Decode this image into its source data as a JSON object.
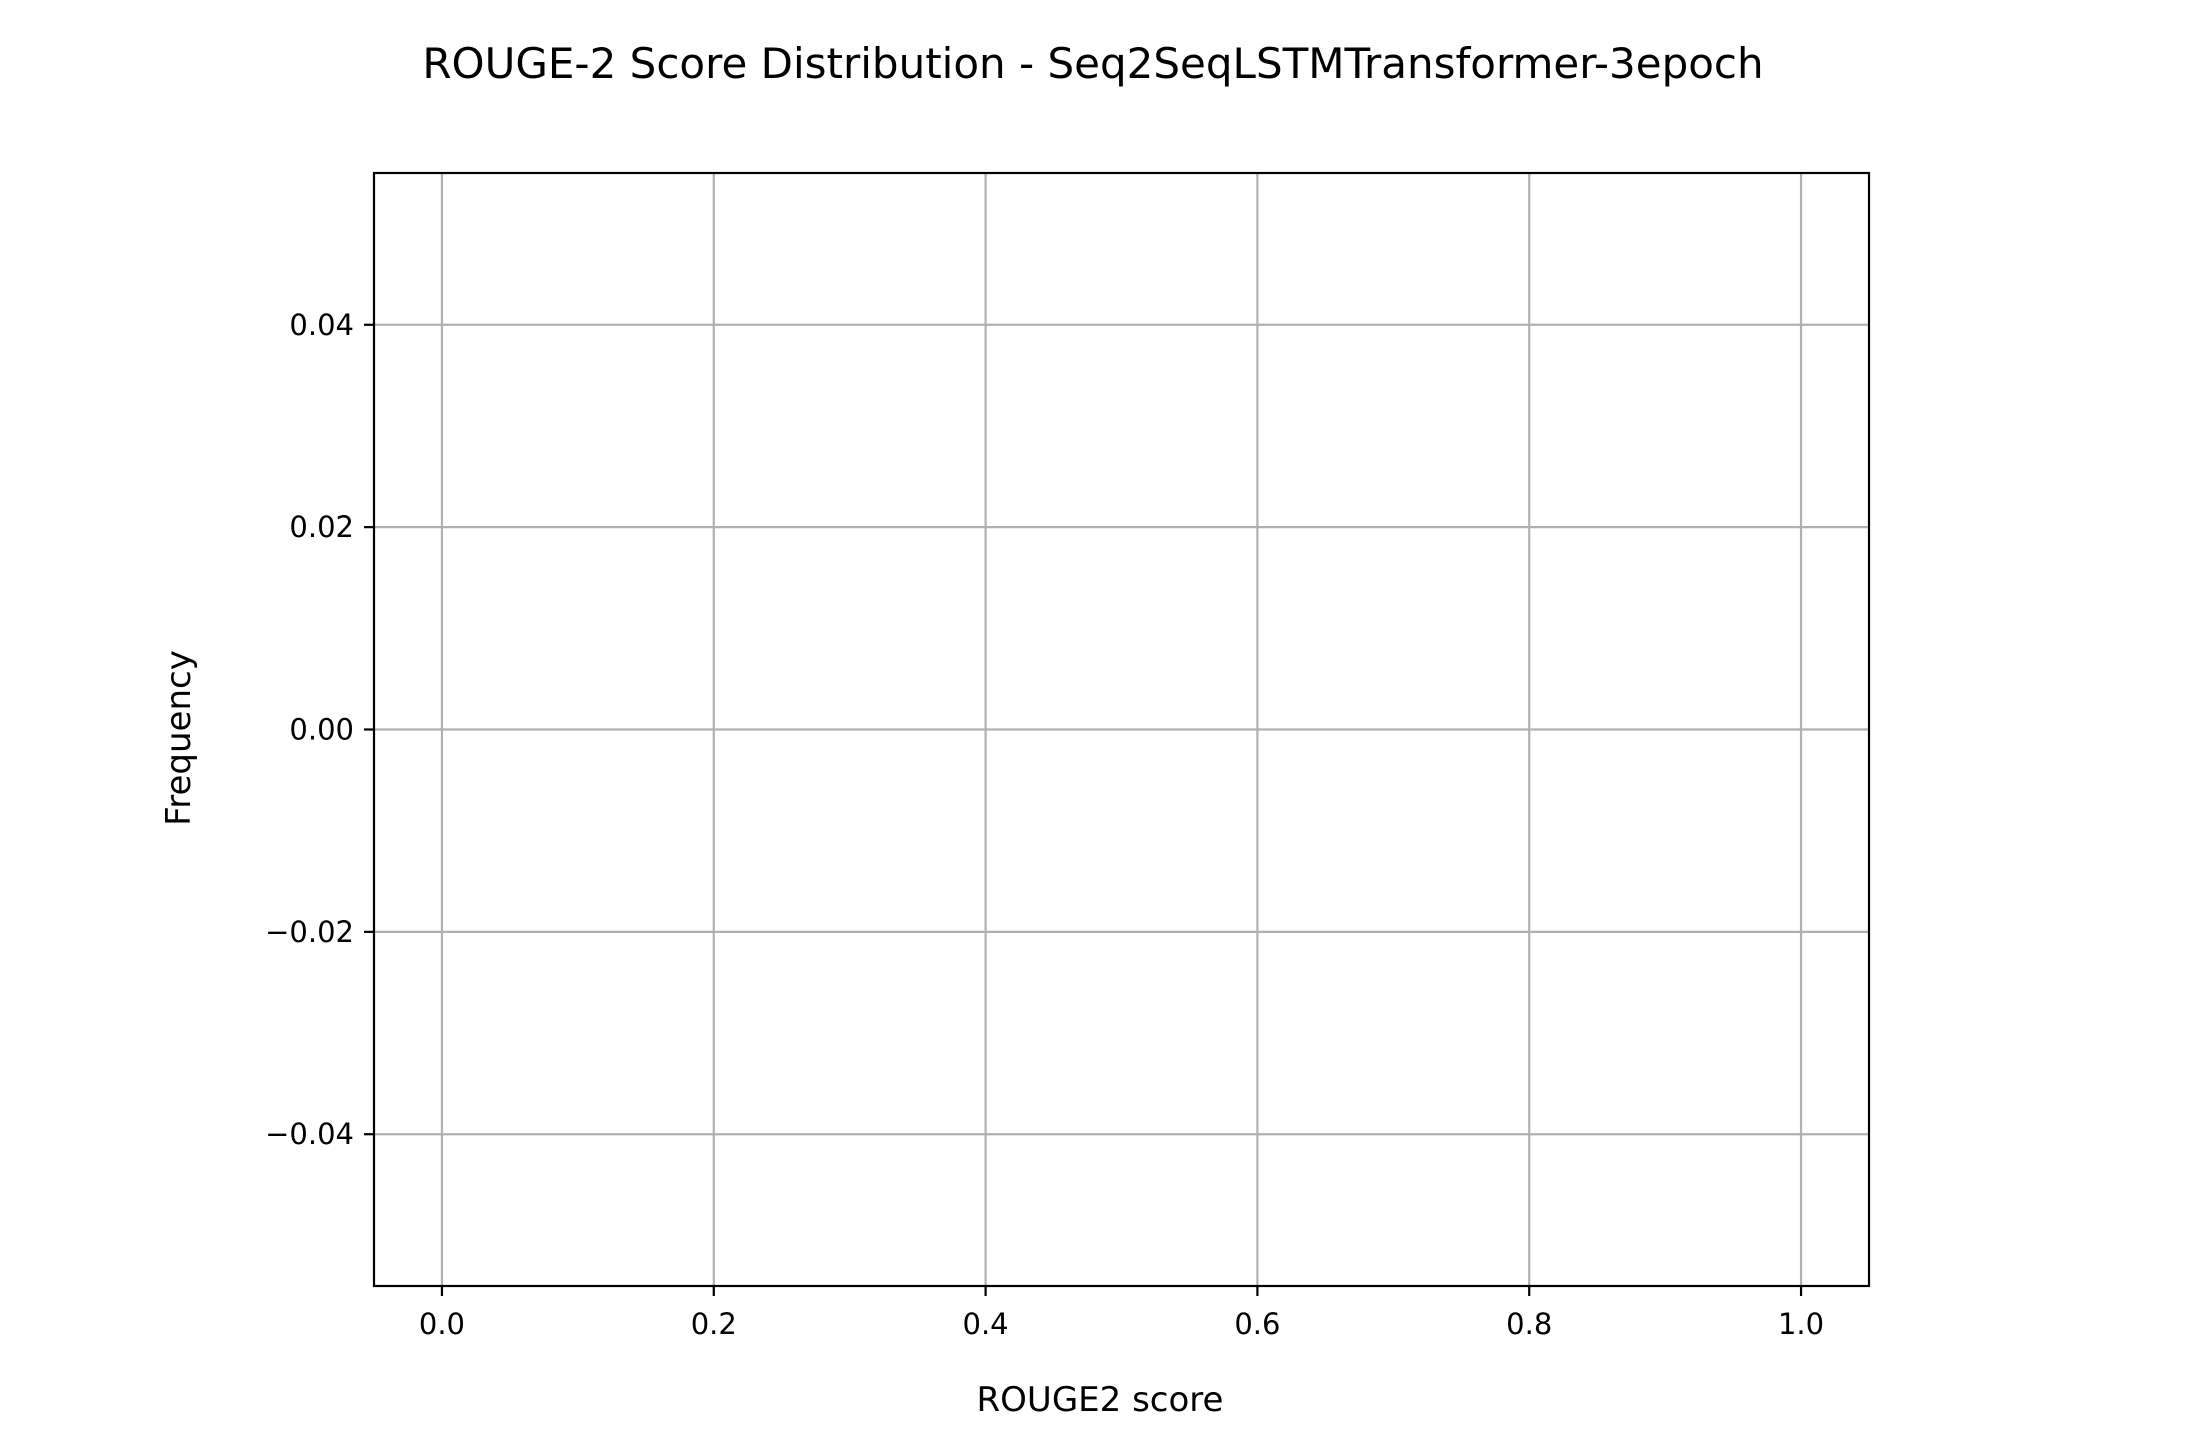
{
  "chart_data": {
    "type": "bar",
    "title": "ROUGE-2 Score Distribution - Seq2SeqLSTMTransformer-3epoch",
    "xlabel": "ROUGE2 score",
    "ylabel": "Frequency",
    "xlim": [
      -0.05,
      1.05
    ],
    "ylim": [
      -0.055,
      0.055
    ],
    "xticks": [
      {
        "value": 0.0,
        "label": "0.0"
      },
      {
        "value": 0.2,
        "label": "0.2"
      },
      {
        "value": 0.4,
        "label": "0.4"
      },
      {
        "value": 0.6,
        "label": "0.6"
      },
      {
        "value": 0.8,
        "label": "0.8"
      },
      {
        "value": 1.0,
        "label": "1.0"
      }
    ],
    "yticks": [
      {
        "value": 0.04,
        "label": "0.04"
      },
      {
        "value": 0.02,
        "label": "0.02"
      },
      {
        "value": 0.0,
        "label": "0.00"
      },
      {
        "value": -0.02,
        "label": "−0.02"
      },
      {
        "value": -0.04,
        "label": "−0.04"
      }
    ],
    "grid": true,
    "bins": [],
    "colors": {
      "grid": "#b0b0b0",
      "axes": "#000000",
      "background": "#ffffff"
    }
  }
}
